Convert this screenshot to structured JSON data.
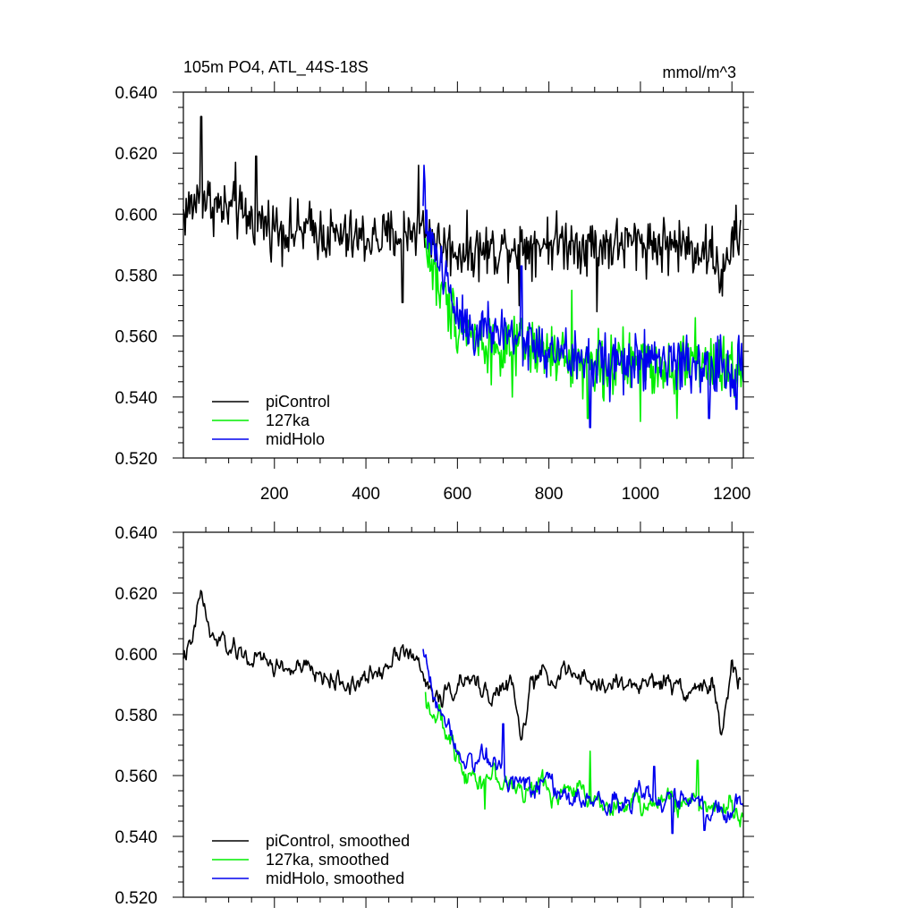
{
  "chart_data": [
    {
      "type": "line",
      "title": "105m PO4, ATL_44S-18S",
      "units": "mmol/m^3",
      "xlim": [
        1,
        1225
      ],
      "ylim": [
        0.52,
        0.64
      ],
      "xticks": [
        200,
        400,
        600,
        800,
        1000,
        1200
      ],
      "xtick_labels": [
        "200",
        "400",
        "600",
        "800",
        "1000",
        "1200"
      ],
      "yticks": [
        0.52,
        0.54,
        0.56,
        0.58,
        0.6,
        0.62,
        0.64
      ],
      "ytick_labels": [
        "0.520",
        "0.540",
        "0.560",
        "0.580",
        "0.600",
        "0.620",
        "0.640"
      ],
      "legend_position": "bottom-left",
      "series": [
        {
          "name": "piControl",
          "color": "#000000",
          "x": [
            1,
            40,
            80,
            120,
            160,
            200,
            240,
            280,
            320,
            360,
            400,
            440,
            480,
            520,
            560,
            600,
            640,
            680,
            720,
            760,
            800,
            840,
            880,
            920,
            960,
            1000,
            1040,
            1080,
            1120,
            1160,
            1180,
            1200,
            1220
          ],
          "values": [
            0.6,
            0.606,
            0.602,
            0.6,
            0.598,
            0.596,
            0.594,
            0.595,
            0.593,
            0.592,
            0.592,
            0.592,
            0.594,
            0.596,
            0.59,
            0.588,
            0.588,
            0.588,
            0.59,
            0.59,
            0.591,
            0.591,
            0.59,
            0.59,
            0.59,
            0.591,
            0.59,
            0.59,
            0.589,
            0.587,
            0.578,
            0.59,
            0.595
          ],
          "noise": 0.007,
          "spikes": [
            [
              40,
              0.632
            ],
            [
              115,
              0.617
            ],
            [
              160,
              0.619
            ],
            [
              480,
              0.571
            ],
            [
              515,
              0.616
            ],
            [
              735,
              0.57
            ],
            [
              905,
              0.568
            ]
          ]
        },
        {
          "name": "127ka",
          "color": "#00ee00",
          "x": [
            530,
            560,
            600,
            640,
            680,
            720,
            760,
            800,
            840,
            880,
            920,
            960,
            1000,
            1040,
            1080,
            1120,
            1160,
            1200,
            1225
          ],
          "values": [
            0.59,
            0.575,
            0.565,
            0.56,
            0.556,
            0.555,
            0.556,
            0.554,
            0.552,
            0.552,
            0.55,
            0.55,
            0.552,
            0.55,
            0.551,
            0.552,
            0.549,
            0.549,
            0.55
          ],
          "noise": 0.0075,
          "spikes": [
            [
              720,
              0.54
            ],
            [
              885,
              0.533
            ],
            [
              1000,
              0.532
            ],
            [
              1080,
              0.533
            ],
            [
              1120,
              0.566
            ],
            [
              850,
              0.575
            ]
          ]
        },
        {
          "name": "midHolo",
          "color": "#0000ee",
          "x": [
            525,
            560,
            600,
            640,
            680,
            720,
            760,
            800,
            840,
            880,
            920,
            960,
            1000,
            1040,
            1080,
            1120,
            1160,
            1200,
            1225
          ],
          "values": [
            0.6,
            0.585,
            0.568,
            0.562,
            0.562,
            0.56,
            0.557,
            0.554,
            0.553,
            0.552,
            0.552,
            0.551,
            0.551,
            0.552,
            0.551,
            0.551,
            0.549,
            0.549,
            0.55
          ],
          "noise": 0.0075,
          "spikes": [
            [
              527,
              0.616
            ],
            [
              890,
              0.53
            ],
            [
              1150,
              0.533
            ],
            [
              1210,
              0.536
            ],
            [
              740,
              0.583
            ]
          ]
        }
      ]
    },
    {
      "type": "line",
      "title": "",
      "units": "",
      "xlim": [
        1,
        1225
      ],
      "ylim": [
        0.52,
        0.64
      ],
      "xticks": [
        200,
        400,
        600,
        800,
        1000,
        1200
      ],
      "xtick_labels": [],
      "yticks": [
        0.52,
        0.54,
        0.56,
        0.58,
        0.6,
        0.62,
        0.64
      ],
      "ytick_labels": [
        "0.520",
        "0.540",
        "0.560",
        "0.580",
        "0.600",
        "0.620",
        "0.640"
      ],
      "legend_position": "bottom-left",
      "series": [
        {
          "name": "piControl, smoothed",
          "color": "#000000",
          "x": [
            1,
            20,
            40,
            60,
            80,
            120,
            160,
            200,
            240,
            280,
            320,
            360,
            400,
            440,
            480,
            520,
            540,
            560,
            600,
            640,
            680,
            720,
            740,
            760,
            800,
            840,
            880,
            920,
            960,
            1000,
            1040,
            1080,
            1120,
            1160,
            1180,
            1200,
            1220
          ],
          "values": [
            0.6,
            0.602,
            0.621,
            0.605,
            0.604,
            0.6,
            0.598,
            0.596,
            0.595,
            0.594,
            0.592,
            0.59,
            0.591,
            0.596,
            0.604,
            0.594,
            0.588,
            0.585,
            0.59,
            0.59,
            0.587,
            0.59,
            0.57,
            0.59,
            0.593,
            0.594,
            0.59,
            0.59,
            0.59,
            0.59,
            0.591,
            0.59,
            0.589,
            0.59,
            0.572,
            0.596,
            0.59
          ],
          "noise": 0.0035,
          "spikes": []
        },
        {
          "name": "127ka, smoothed",
          "color": "#00ee00",
          "x": [
            530,
            560,
            600,
            640,
            680,
            720,
            760,
            800,
            840,
            880,
            920,
            960,
            1000,
            1040,
            1080,
            1120,
            1160,
            1200,
            1225
          ],
          "values": [
            0.586,
            0.578,
            0.566,
            0.56,
            0.56,
            0.556,
            0.555,
            0.556,
            0.554,
            0.555,
            0.552,
            0.55,
            0.55,
            0.551,
            0.552,
            0.551,
            0.55,
            0.549,
            0.549
          ],
          "noise": 0.004,
          "spikes": [
            [
              890,
              0.568
            ],
            [
              1125,
              0.565
            ],
            [
              660,
              0.549
            ]
          ]
        },
        {
          "name": "midHolo, smoothed",
          "color": "#0000ee",
          "x": [
            525,
            560,
            600,
            640,
            680,
            720,
            760,
            800,
            840,
            880,
            920,
            960,
            1000,
            1040,
            1080,
            1120,
            1160,
            1200,
            1225
          ],
          "values": [
            0.6,
            0.583,
            0.57,
            0.565,
            0.565,
            0.56,
            0.558,
            0.556,
            0.553,
            0.552,
            0.551,
            0.551,
            0.552,
            0.553,
            0.552,
            0.55,
            0.549,
            0.55,
            0.551
          ],
          "noise": 0.004,
          "spikes": [
            [
              700,
              0.577
            ],
            [
              1030,
              0.563
            ],
            [
              1070,
              0.541
            ],
            [
              1140,
              0.542
            ]
          ]
        }
      ]
    }
  ]
}
